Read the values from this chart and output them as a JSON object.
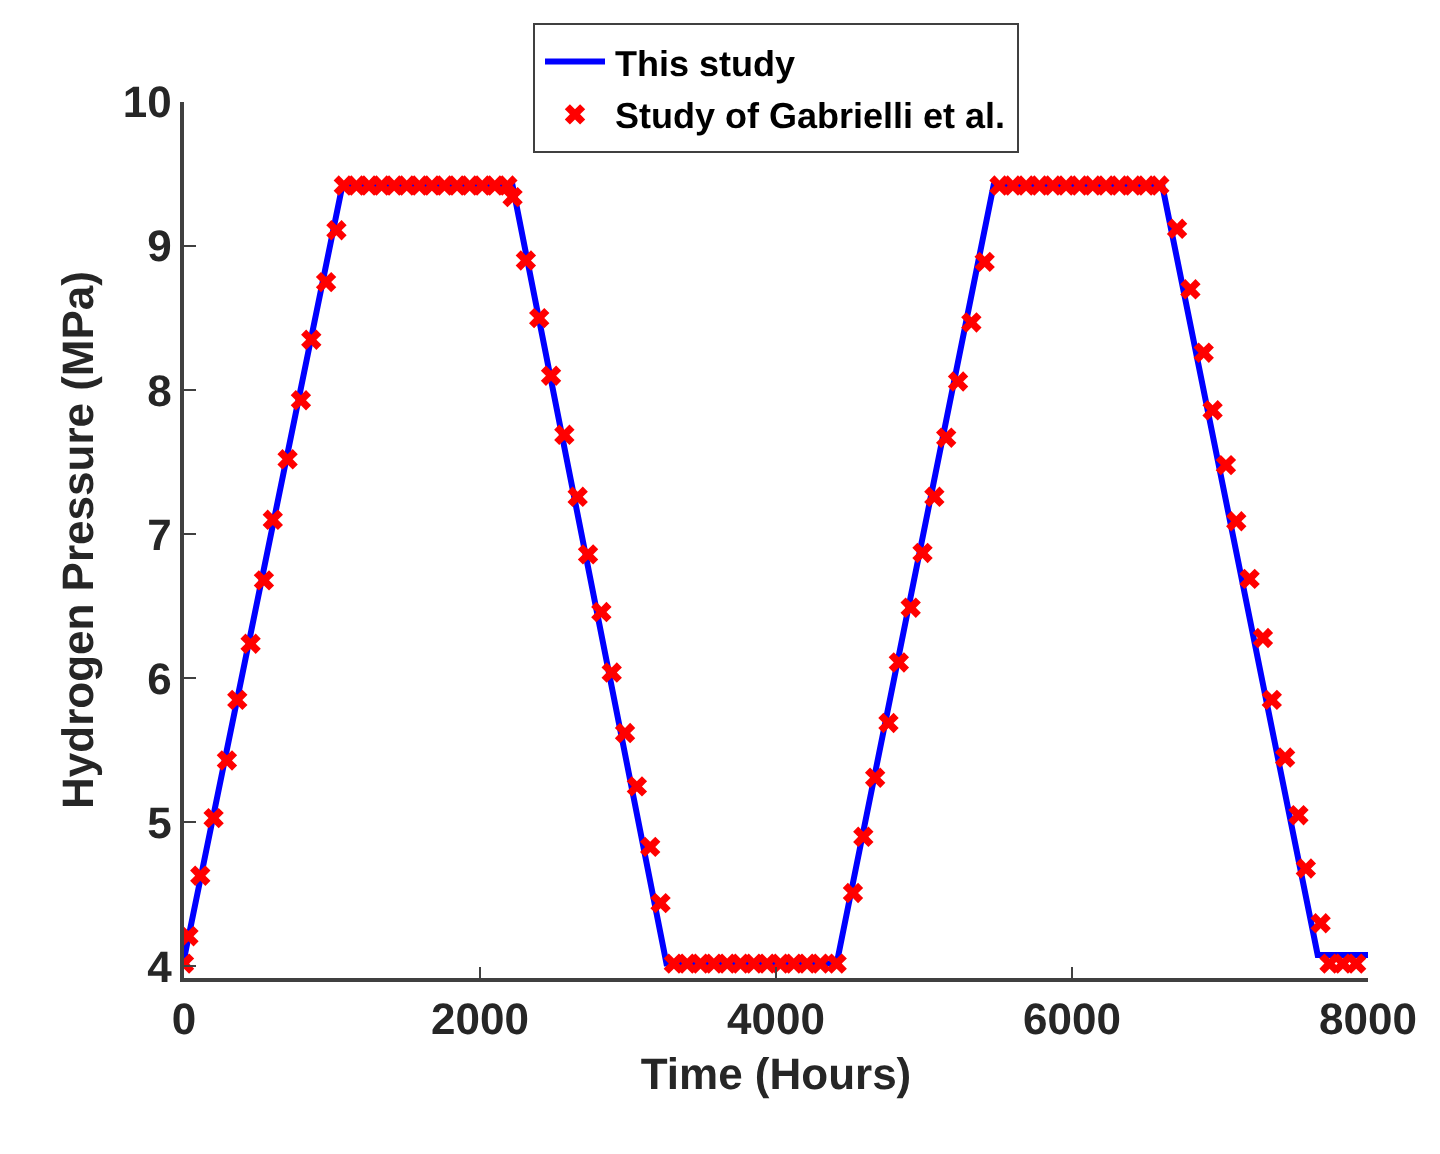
{
  "chart_data": {
    "type": "line",
    "xlabel": "Time (Hours)",
    "ylabel": "Hydrogen Pressure (MPa)",
    "xlim": [
      0,
      8000
    ],
    "xticks": [
      0,
      2000,
      4000,
      6000,
      8000
    ],
    "ylim": [
      3.92,
      10
    ],
    "yticks": [
      4,
      5,
      6,
      7,
      8,
      9,
      10
    ],
    "grid": false,
    "legend": "top",
    "series": [
      {
        "name": "This study",
        "color": "#0000ff",
        "marker": "none",
        "line_style": "solid",
        "x": [
          0,
          1070,
          2220,
          3260,
          4410,
          5470,
          6610,
          7660,
          8000
        ],
        "values": [
          4.05,
          9.42,
          9.42,
          4.02,
          4.02,
          9.42,
          9.42,
          4.08,
          4.08
        ]
      },
      {
        "name": "Study of Gabrielli et al.",
        "type": "scatter",
        "color": "#ff0000",
        "marker": "cross",
        "x": [
          0,
          30,
          110,
          200,
          290,
          360,
          450,
          540,
          600,
          700,
          790,
          860,
          960,
          1030,
          1080,
          1165,
          1250,
          1335,
          1420,
          1505,
          1590,
          1675,
          1760,
          1845,
          1930,
          2015,
          2100,
          2185,
          2220,
          2310,
          2400,
          2480,
          2570,
          2660,
          2730,
          2820,
          2890,
          2980,
          3060,
          3150,
          3220,
          3310,
          3400,
          3490,
          3580,
          3670,
          3760,
          3850,
          3940,
          4030,
          4120,
          4210,
          4300,
          4410,
          4520,
          4590,
          4670,
          4760,
          4830,
          4910,
          4990,
          5070,
          5150,
          5230,
          5320,
          5410,
          5510,
          5600,
          5690,
          5780,
          5870,
          5960,
          6050,
          6140,
          6230,
          6320,
          6410,
          6500,
          6590,
          6710,
          6800,
          6890,
          6950,
          7040,
          7110,
          7200,
          7290,
          7350,
          7440,
          7530,
          7580,
          7680,
          7740,
          7830,
          7920
        ],
        "values": [
          4.02,
          4.21,
          4.63,
          5.03,
          5.43,
          5.85,
          6.24,
          6.68,
          7.1,
          7.52,
          7.93,
          8.35,
          8.75,
          9.11,
          9.42,
          9.42,
          9.42,
          9.42,
          9.42,
          9.42,
          9.42,
          9.42,
          9.42,
          9.42,
          9.42,
          9.42,
          9.42,
          9.42,
          9.34,
          8.9,
          8.5,
          8.1,
          7.69,
          7.26,
          6.86,
          6.46,
          6.04,
          5.62,
          5.25,
          4.83,
          4.44,
          4.02,
          4.02,
          4.02,
          4.02,
          4.02,
          4.02,
          4.02,
          4.02,
          4.02,
          4.02,
          4.02,
          4.02,
          4.02,
          4.51,
          4.9,
          5.31,
          5.69,
          6.11,
          6.49,
          6.87,
          7.26,
          7.67,
          8.06,
          8.47,
          8.89,
          9.42,
          9.42,
          9.42,
          9.42,
          9.42,
          9.42,
          9.42,
          9.42,
          9.42,
          9.42,
          9.42,
          9.42,
          9.42,
          9.12,
          8.7,
          8.26,
          7.86,
          7.48,
          7.09,
          6.69,
          6.28,
          5.85,
          5.45,
          5.05,
          4.68,
          4.3,
          4.02,
          4.02,
          4.02
        ]
      }
    ]
  }
}
